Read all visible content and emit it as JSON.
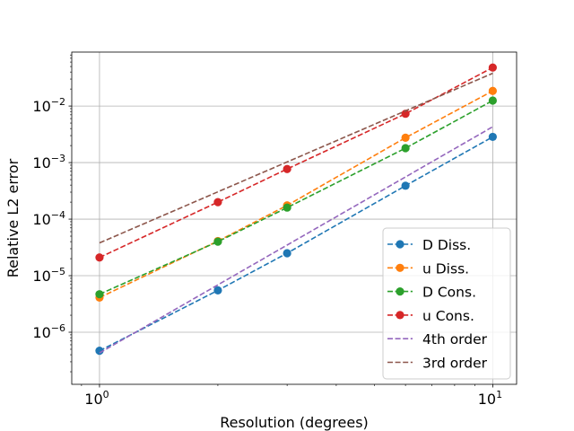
{
  "chart_data": {
    "type": "line",
    "xscale": "log",
    "yscale": "log",
    "xlabel": "Resolution (degrees)",
    "ylabel": "Relative L2 error",
    "xlim": [
      0.85,
      11.5
    ],
    "ylim": [
      1.2e-07,
      0.09
    ],
    "grid": true,
    "legend_position": "lower-right",
    "x_ticks": [
      {
        "value": 1,
        "base": "10",
        "exp": "0"
      },
      {
        "value": 10,
        "base": "10",
        "exp": "1"
      }
    ],
    "y_ticks": [
      {
        "value": 1e-06,
        "base": "10",
        "exp": "−6"
      },
      {
        "value": 1e-05,
        "base": "10",
        "exp": "−5"
      },
      {
        "value": 0.0001,
        "base": "10",
        "exp": "−4"
      },
      {
        "value": 0.001,
        "base": "10",
        "exp": "−3"
      },
      {
        "value": 0.01,
        "base": "10",
        "exp": "−2"
      }
    ],
    "series": [
      {
        "name": "D Diss.",
        "color": "#1f77b4",
        "marker": true,
        "x": [
          1,
          2,
          3,
          6,
          10
        ],
        "y": [
          4.7e-07,
          5.5e-06,
          2.5e-05,
          0.00039,
          0.00285
        ]
      },
      {
        "name": "u Diss.",
        "color": "#ff7f0e",
        "marker": true,
        "x": [
          1,
          2,
          3,
          6,
          10
        ],
        "y": [
          4.1e-06,
          4.1e-05,
          0.000175,
          0.00275,
          0.0185
        ]
      },
      {
        "name": "D Cons.",
        "color": "#2ca02c",
        "marker": true,
        "x": [
          1,
          2,
          3,
          6,
          10
        ],
        "y": [
          4.7e-06,
          4e-05,
          0.00016,
          0.0018,
          0.0125
        ]
      },
      {
        "name": "u Cons.",
        "color": "#d62728",
        "marker": true,
        "x": [
          1,
          2,
          3,
          6,
          10
        ],
        "y": [
          2.1e-05,
          0.0002,
          0.00077,
          0.0073,
          0.048
        ]
      },
      {
        "name": "4th order",
        "color": "#9467bd",
        "marker": false,
        "x": [
          1,
          10
        ],
        "y": [
          4.3e-07,
          0.0043
        ]
      },
      {
        "name": "3rd order",
        "color": "#8c564b",
        "marker": false,
        "x": [
          1,
          10
        ],
        "y": [
          3.8e-05,
          0.038
        ]
      }
    ]
  }
}
